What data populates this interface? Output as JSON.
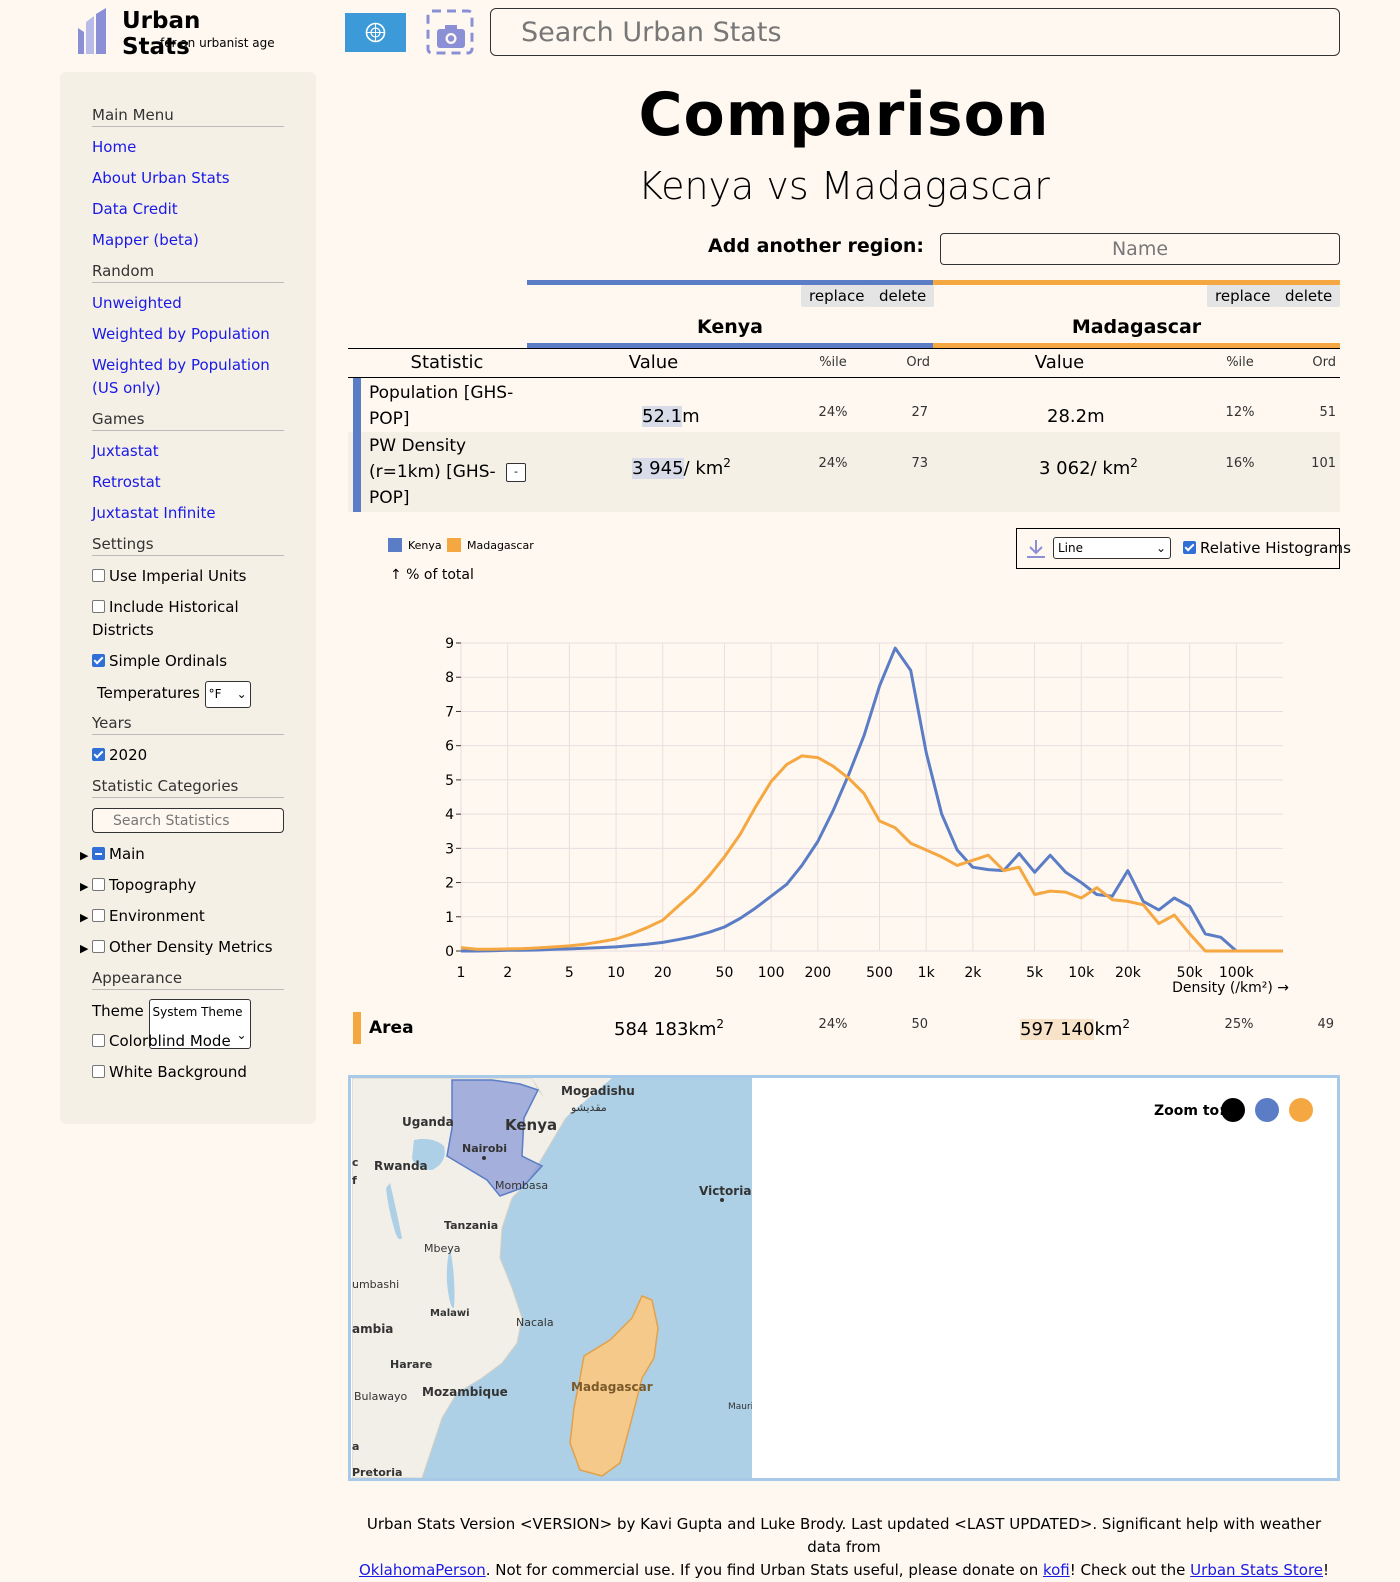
{
  "header": {
    "logo_title": "Urban Stats",
    "logo_subtitle": "for an urbanist age",
    "search_placeholder": "Search Urban Stats"
  },
  "sidebar": {
    "main_menu": {
      "heading": "Main Menu",
      "links": [
        "Home",
        "About Urban Stats",
        "Data Credit",
        "Mapper (beta)"
      ]
    },
    "random": {
      "heading": "Random",
      "links": [
        "Unweighted",
        "Weighted by Population",
        "Weighted by Population (US only)"
      ]
    },
    "games": {
      "heading": "Games",
      "links": [
        "Juxtastat",
        "Retrostat",
        "Juxtastat Infinite"
      ]
    },
    "settings": {
      "heading": "Settings",
      "use_imperial": "Use Imperial Units",
      "include_historical": "Include Historical Districts",
      "simple_ordinals": "Simple Ordinals",
      "temperatures_label": "Temperatures",
      "temperatures_value": "°F"
    },
    "years": {
      "heading": "Years",
      "year": "2020"
    },
    "categories": {
      "heading": "Statistic Categories",
      "search_placeholder": "Search Statistics",
      "items": [
        "Main",
        "Topography",
        "Environment",
        "Other Density Metrics"
      ]
    },
    "appearance": {
      "heading": "Appearance",
      "theme_label": "Theme",
      "theme_value": "System Theme",
      "colorblind": "Colorblind Mode",
      "white_background": "White Background"
    }
  },
  "page": {
    "title": "Comparison",
    "subtitle": "Kenya vs Madagascar",
    "add_region_label": "Add another region:",
    "add_region_placeholder": "Name"
  },
  "regions": [
    {
      "name": "Kenya",
      "color": "#5a7dc5",
      "replace": "replace",
      "delete": "delete"
    },
    {
      "name": "Madagascar",
      "color": "#f5a742",
      "replace": "replace",
      "delete": "delete"
    }
  ],
  "table": {
    "headers": {
      "statistic": "Statistic",
      "value": "Value",
      "pctile": "%ile",
      "ord": "Ord"
    },
    "rows": [
      {
        "statistic": "Population [GHS-POP]",
        "kenya": {
          "value": "52.1",
          "unit": "m",
          "pctile": "24%",
          "ord": "27"
        },
        "madagascar": {
          "value": "28.2",
          "unit": "m",
          "pctile": "12%",
          "ord": "51"
        }
      },
      {
        "statistic": "PW Density (r=1km) [GHS-POP]",
        "expand_toggle": "-",
        "kenya": {
          "value": "3 945",
          "unit": "/ km",
          "unit_sup": "2",
          "pctile": "24%",
          "ord": "73"
        },
        "madagascar": {
          "value": "3 062",
          "unit": "/ km",
          "unit_sup": "2",
          "pctile": "16%",
          "ord": "101"
        }
      },
      {
        "statistic": "Area",
        "kenya": {
          "value": "584 183",
          "unit": "km",
          "unit_sup": "2",
          "pctile": "24%",
          "ord": "50"
        },
        "madagascar": {
          "value": "597 140",
          "unit": "km",
          "unit_sup": "2",
          "pctile": "25%",
          "ord": "49"
        }
      }
    ]
  },
  "chart_controls": {
    "download_icon": "download-icon",
    "chart_type": "Line",
    "relative_histograms": "Relative Histograms"
  },
  "chart_data": {
    "type": "line",
    "ylabel": "↑ % of total",
    "xlabel": "Density (/km²) →",
    "x_scale": "log",
    "x_ticks": [
      "1",
      "2",
      "5",
      "10",
      "20",
      "50",
      "100",
      "200",
      "500",
      "1k",
      "2k",
      "5k",
      "10k",
      "20k",
      "50k",
      "100k"
    ],
    "x_tick_values": [
      1,
      2,
      5,
      10,
      20,
      50,
      100,
      200,
      500,
      1000,
      2000,
      5000,
      10000,
      20000,
      50000,
      100000
    ],
    "y_ticks": [
      "0",
      "1",
      "2",
      "3",
      "4",
      "5",
      "6",
      "7",
      "8",
      "9"
    ],
    "ylim": [
      0,
      9
    ],
    "xlim": [
      1,
      200000
    ],
    "grid": true,
    "legend_position": "top-left",
    "series": [
      {
        "name": "Kenya",
        "color": "#5a7dc5",
        "x": [
          1,
          1.26,
          1.58,
          2,
          2.5,
          3.16,
          4,
          5,
          6.3,
          7.9,
          10,
          12.6,
          15.8,
          20,
          25,
          31.6,
          40,
          50,
          63,
          79,
          100,
          126,
          158,
          200,
          251,
          316,
          398,
          501,
          631,
          794,
          1000,
          1259,
          1585,
          1995,
          2512,
          3162,
          3981,
          5012,
          6310,
          7943,
          10000,
          12589,
          15849,
          19953,
          25119,
          31623,
          39811,
          50119,
          63096,
          79433,
          100000,
          125893,
          158489,
          199526
        ],
        "values": [
          0,
          0,
          0.01,
          0.02,
          0.02,
          0.03,
          0.05,
          0.06,
          0.08,
          0.1,
          0.12,
          0.16,
          0.2,
          0.25,
          0.33,
          0.42,
          0.55,
          0.7,
          0.95,
          1.25,
          1.6,
          1.95,
          2.5,
          3.2,
          4.1,
          5.15,
          6.3,
          7.75,
          8.85,
          8.2,
          5.8,
          4,
          2.95,
          2.45,
          2.38,
          2.35,
          2.85,
          2.3,
          2.8,
          2.3,
          2.0,
          1.65,
          1.6,
          2.35,
          1.45,
          1.2,
          1.55,
          1.3,
          0.5,
          0.4,
          0,
          0,
          0,
          0
        ]
      },
      {
        "name": "Madagascar",
        "color": "#f5a742",
        "x": [
          1,
          1.26,
          1.58,
          2,
          2.5,
          3.16,
          4,
          5,
          6.3,
          7.9,
          10,
          12.6,
          15.8,
          20,
          25,
          31.6,
          40,
          50,
          63,
          79,
          100,
          126,
          158,
          200,
          251,
          316,
          398,
          501,
          631,
          794,
          1000,
          1259,
          1585,
          1995,
          2512,
          3162,
          3981,
          5012,
          6310,
          7943,
          10000,
          12589,
          15849,
          19953,
          25119,
          31623,
          39811,
          50119,
          63096,
          79433,
          100000,
          125893,
          158489,
          199526
        ],
        "values": [
          0.1,
          0.05,
          0.05,
          0.06,
          0.07,
          0.09,
          0.12,
          0.15,
          0.2,
          0.27,
          0.35,
          0.5,
          0.68,
          0.9,
          1.3,
          1.7,
          2.2,
          2.75,
          3.4,
          4.2,
          4.95,
          5.45,
          5.7,
          5.65,
          5.4,
          5.05,
          4.6,
          3.8,
          3.6,
          3.15,
          2.95,
          2.75,
          2.5,
          2.65,
          2.8,
          2.35,
          2.45,
          1.65,
          1.75,
          1.72,
          1.55,
          1.85,
          1.5,
          1.45,
          1.35,
          0.8,
          1.05,
          0.5,
          0,
          0,
          0,
          0,
          0,
          0
        ]
      }
    ]
  },
  "map": {
    "zoom_label": "Zoom to:",
    "zoom_colors": [
      "#000000",
      "#5a7dc5",
      "#f5a742"
    ],
    "labels": {
      "kenya": "Kenya",
      "madagascar": "Madagascar",
      "mogadishu": "Mogadishu",
      "mogadishu_local": "مقديشو",
      "uganda": "Uganda",
      "nairobi": "Nairobi",
      "rwanda": "Rwanda",
      "mombasa": "Mombasa",
      "victoria": "Victoria",
      "tanzania": "Tanzania",
      "mbeya": "Mbeya",
      "lubumbashi": "umbashi",
      "malawi": "Malawi",
      "nacala": "Nacala",
      "zambia": "ambia",
      "harare": "Harare",
      "bulawayo": "Bulawayo",
      "mozambique": "Mozambique",
      "mauritius": "Mauri",
      "pretoria": "Pretoria",
      "edge_c": "c",
      "edge_f": "f",
      "edge_a": "a"
    }
  },
  "footer": {
    "line1": "Urban Stats Version <VERSION> by Kavi Gupta and Luke Brody. Last updated <LAST UPDATED>. Significant help with weather data from",
    "oklahoma_person": "OklahomaPerson",
    "line2_a": ". Not for commercial use. If you find Urban Stats useful, please donate on ",
    "kofi": "kofi",
    "line2_b": "! Check out the ",
    "store": "Urban Stats Store",
    "line2_c": "!"
  }
}
